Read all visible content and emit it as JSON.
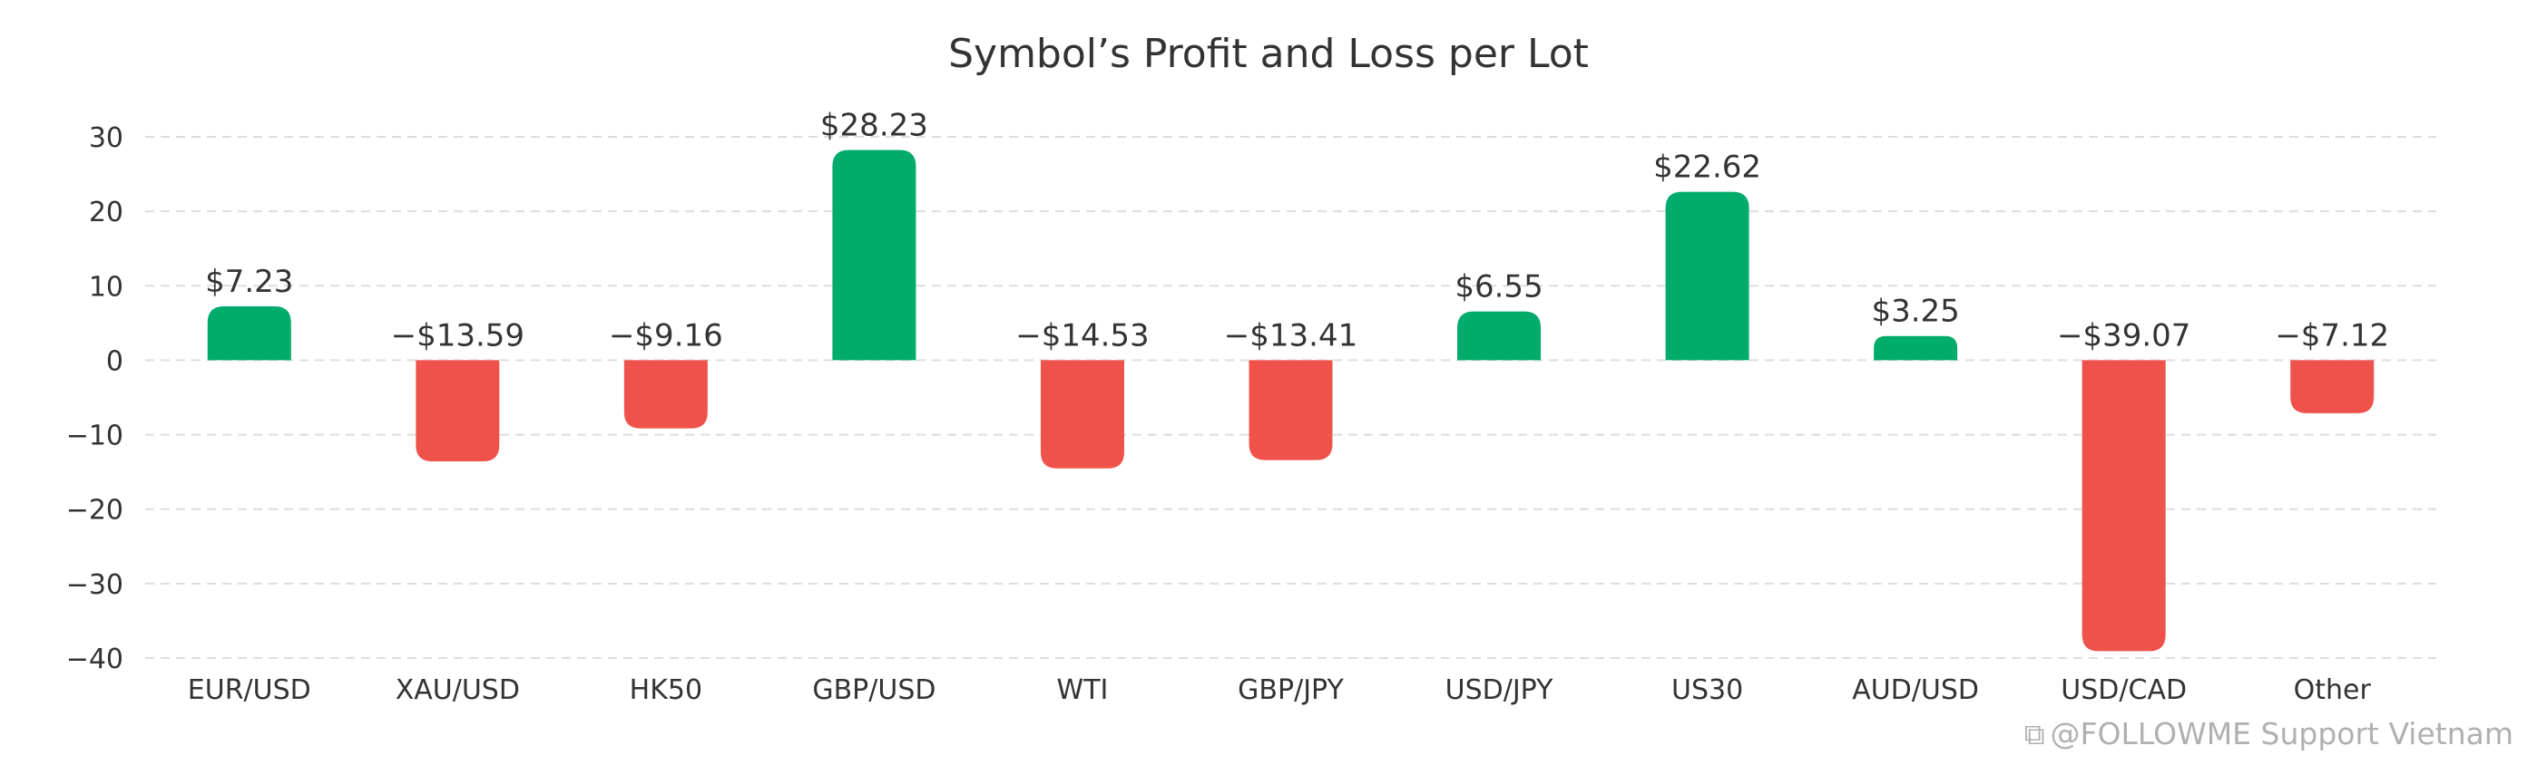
{
  "chart_data": {
    "type": "bar",
    "title": "Symbol’s Profit and Loss per Lot",
    "xlabel": "",
    "ylabel": "",
    "categories": [
      "EUR/USD",
      "XAU/USD",
      "HK50",
      "GBP/USD",
      "WTI",
      "GBP/JPY",
      "USD/JPY",
      "US30",
      "AUD/USD",
      "USD/CAD",
      "Other"
    ],
    "values": [
      7.23,
      -13.59,
      -9.16,
      28.23,
      -14.53,
      -13.41,
      6.55,
      22.62,
      3.25,
      -39.07,
      -7.12
    ],
    "data_labels": [
      "$7.23",
      "−$13.59",
      "−$9.16",
      "$28.23",
      "−$14.53",
      "−$13.41",
      "$6.55",
      "$22.62",
      "$3.25",
      "−$39.07",
      "−$7.12"
    ],
    "ylim": [
      -40,
      30
    ],
    "yticks": [
      30,
      20,
      10,
      0,
      -10,
      -20,
      -30,
      -40
    ],
    "ytick_labels": [
      "30",
      "20",
      "10",
      "0",
      "−10",
      "−20",
      "−30",
      "−40"
    ],
    "grid": true,
    "grid_style": "dashed",
    "legend": "none",
    "colors": {
      "positive": "#00ab6b",
      "negative": "#ef524b",
      "grid": "#dddddd",
      "text": "#333333"
    }
  },
  "watermark": {
    "icon": "followme-logo-icon",
    "text": "@FOLLOWME Support Vietnam"
  }
}
